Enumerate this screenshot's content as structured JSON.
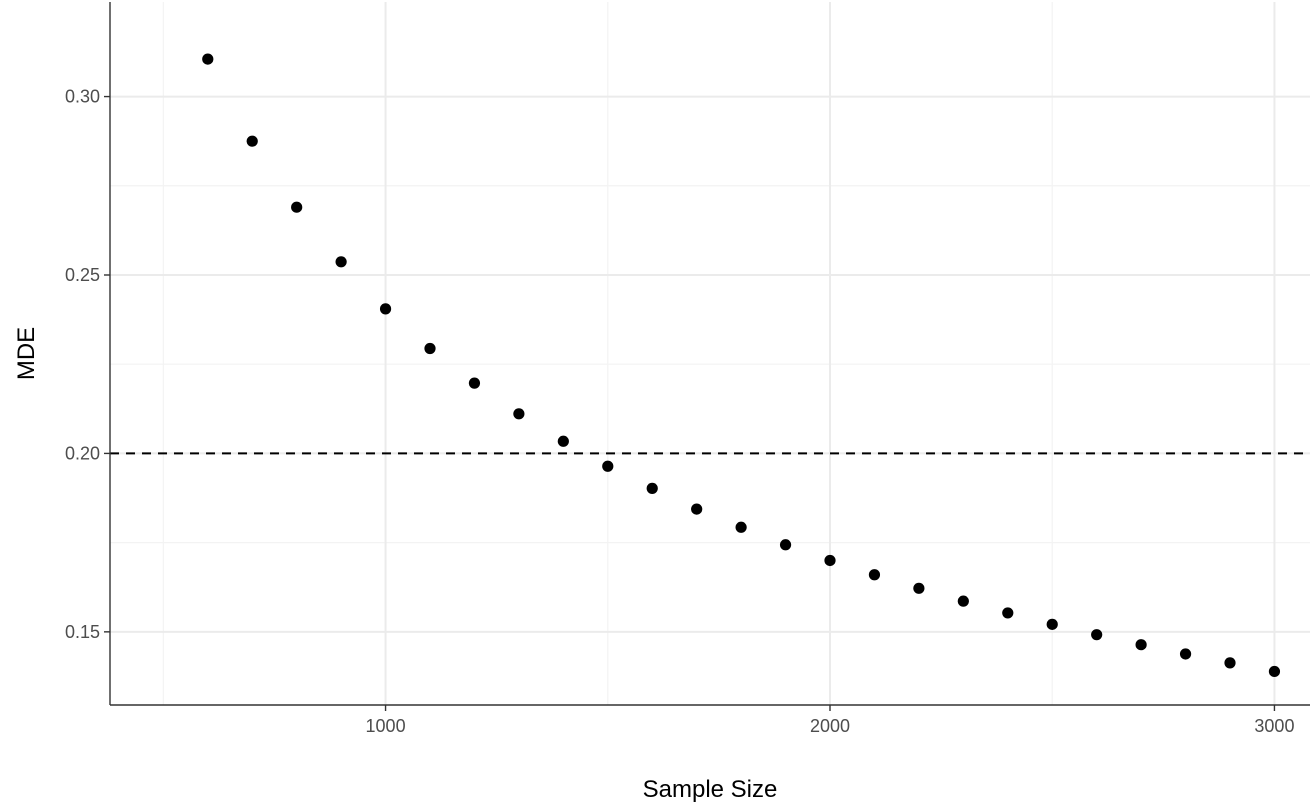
{
  "chart_data": {
    "type": "scatter",
    "title": "",
    "xlabel": "Sample Size",
    "ylabel": "MDE",
    "xlim": [
      380,
      3080
    ],
    "ylim": [
      0.1295,
      0.3265
    ],
    "x_ticks": [
      1000,
      2000,
      3000
    ],
    "x_tick_labels": [
      "1000",
      "2000",
      "3000"
    ],
    "x_minor_ticks": [
      500,
      1500,
      2500
    ],
    "y_ticks": [
      0.15,
      0.2,
      0.25,
      0.3
    ],
    "y_tick_labels": [
      "0.15",
      "0.20",
      "0.25",
      "0.30"
    ],
    "y_minor_ticks": [
      0.175,
      0.225,
      0.275
    ],
    "grid": true,
    "reference_line": {
      "orientation": "horizontal",
      "y": 0.2,
      "style": "dashed"
    },
    "series": [
      {
        "x": [
          600,
          700,
          800,
          900,
          1000,
          1100,
          1200,
          1300,
          1400,
          1500,
          1600,
          1700,
          1800,
          1900,
          2000,
          2100,
          2200,
          2300,
          2400,
          2500,
          2600,
          2700,
          2800,
          2900,
          3000
        ],
        "y": [
          0.3105,
          0.2875,
          0.269,
          0.2537,
          0.2405,
          0.2294,
          0.2197,
          0.2111,
          0.2034,
          0.1964,
          0.1902,
          0.1844,
          0.1793,
          0.1744,
          0.17,
          0.166,
          0.1622,
          0.1586,
          0.1553,
          0.1521,
          0.1492,
          0.1464,
          0.1438,
          0.1413,
          0.1389
        ]
      }
    ]
  }
}
